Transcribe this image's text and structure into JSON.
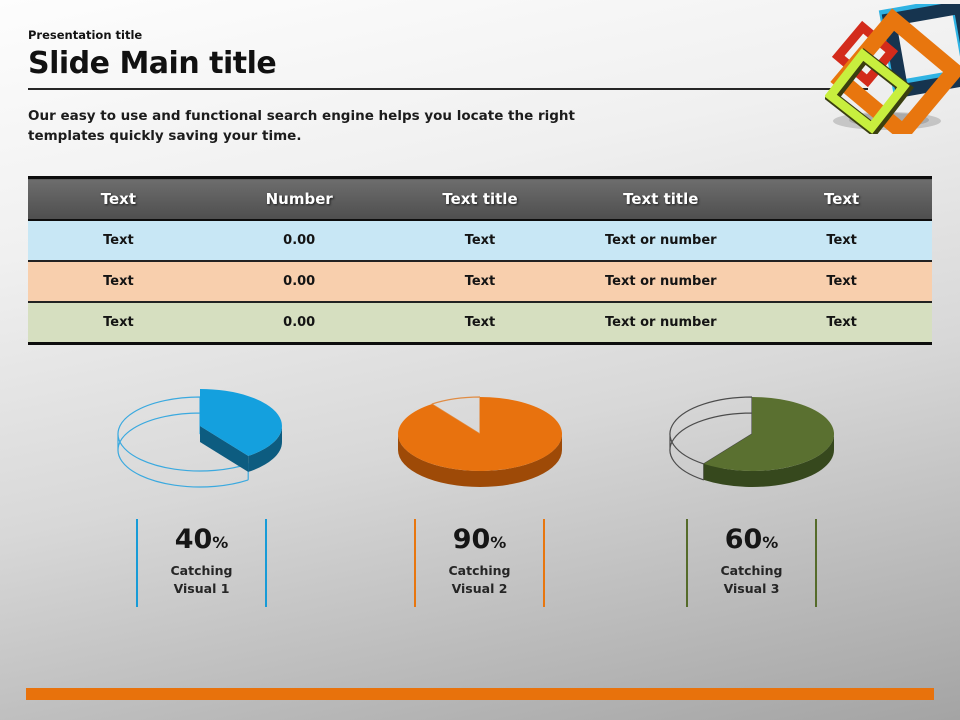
{
  "slide": {
    "eyebrow": "Presentation title",
    "title": "Slide Main title",
    "intro_line1": "Our easy to use and functional search engine helps you locate the right",
    "intro_line2": "templates quickly saving your time."
  },
  "table": {
    "headers": [
      "Text",
      "Number",
      "Text title",
      "Text title",
      "Text"
    ],
    "rows": [
      [
        "Text",
        "0.00",
        "Text",
        "Text or number",
        "Text"
      ],
      [
        "Text",
        "0.00",
        "Text",
        "Text or number",
        "Text"
      ],
      [
        "Text",
        "0.00",
        "Text",
        "Text or number",
        "Text"
      ]
    ],
    "header_bg_top": "#6d6d6d",
    "header_bg_bottom": "#4e4e4e",
    "row_colors": [
      "#c8e7f5",
      "#f8cfad",
      "#d6dfc0"
    ]
  },
  "chart_data": [
    {
      "type": "pie",
      "title": "Catching Visual 1",
      "percent": 40,
      "value": "40",
      "unit": "%",
      "caption_line1": "Catching",
      "caption_line2": "Visual 1",
      "values": [
        40,
        60
      ],
      "labels": [
        "filled",
        "remainder (wireframe)"
      ],
      "elevated_slice": true,
      "colors": {
        "top": "#14a0de",
        "side": "#0d5c80",
        "wire": "#3aa9df",
        "accent": "#179bd7"
      }
    },
    {
      "type": "pie",
      "title": "Catching Visual 2",
      "percent": 90,
      "value": "90",
      "unit": "%",
      "caption_line1": "Catching",
      "caption_line2": "Visual 2",
      "values": [
        90,
        10
      ],
      "labels": [
        "filled",
        "remainder (wireframe)"
      ],
      "elevated_slice": false,
      "colors": {
        "top": "#e8720e",
        "side": "#9e4a07",
        "wire": "#e08c44",
        "accent": "#e8760e"
      }
    },
    {
      "type": "pie",
      "title": "Catching Visual 3",
      "percent": 60,
      "value": "60",
      "unit": "%",
      "caption_line1": "Catching",
      "caption_line2": "Visual 3",
      "values": [
        60,
        40
      ],
      "labels": [
        "filled",
        "remainder (wireframe)"
      ],
      "elevated_slice": false,
      "colors": {
        "top": "#5a7030",
        "side": "#36481d",
        "wire": "#4c4c4c",
        "accent": "#556b2a"
      }
    }
  ],
  "logo": {
    "name": "overlapping-frames-logo",
    "colors": {
      "orange": "#e8760e",
      "navy": "#16344f",
      "cyan": "#2fb3e3",
      "lime": "#c8ef3e",
      "lime_shadow": "#3a3f10",
      "red": "#d32b1b"
    }
  },
  "footer": {
    "bar_color": "#e8720c"
  }
}
